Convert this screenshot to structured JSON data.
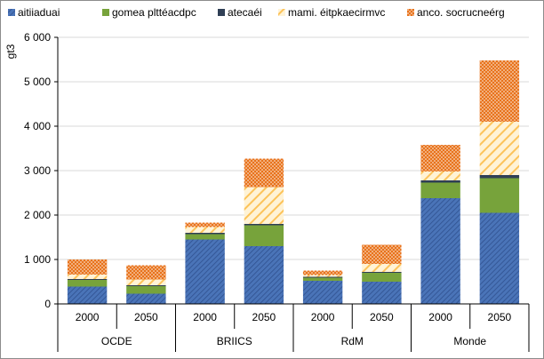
{
  "chart_data": {
    "type": "bar",
    "stacked": true,
    "ylabel": "gt3",
    "ylim": [
      0,
      6000
    ],
    "yticks": [
      "0",
      "1 000",
      "2 000",
      "3 000",
      "4 000",
      "5 000",
      "6 000"
    ],
    "ytick_values": [
      0,
      1000,
      2000,
      3000,
      4000,
      5000,
      6000
    ],
    "grid": true,
    "legend_position": "top",
    "groups": [
      "OCDE",
      "BRIICS",
      "RdM",
      "Monde"
    ],
    "categories": [
      "2000",
      "2050",
      "2000",
      "2050",
      "2000",
      "2050",
      "2000",
      "2050"
    ],
    "category_group": [
      0,
      0,
      1,
      1,
      2,
      2,
      3,
      3
    ],
    "series": [
      {
        "name": "aitiiaduai",
        "color": "#4a74b8",
        "pattern": "diagonal-dark",
        "values": [
          390,
          230,
          1450,
          1300,
          520,
          500,
          2380,
          2050
        ]
      },
      {
        "name": "gomea plttéacdpc",
        "color": "#77a33b",
        "pattern": "solid",
        "values": [
          150,
          170,
          120,
          470,
          70,
          200,
          350,
          780
        ]
      },
      {
        "name": "atecaéi",
        "color": "#2f3f55",
        "pattern": "solid",
        "values": [
          20,
          20,
          30,
          30,
          20,
          20,
          50,
          70
        ]
      },
      {
        "name": "mami. éitpkaecirmvc",
        "color": "#fcc35a",
        "pattern": "diagonal-light",
        "values": [
          100,
          130,
          130,
          830,
          40,
          180,
          200,
          1200
        ]
      },
      {
        "name": "anco. socrucneérg",
        "color": "#e8731c",
        "pattern": "dots",
        "values": [
          340,
          320,
          100,
          640,
          100,
          430,
          600,
          1380
        ]
      }
    ]
  }
}
